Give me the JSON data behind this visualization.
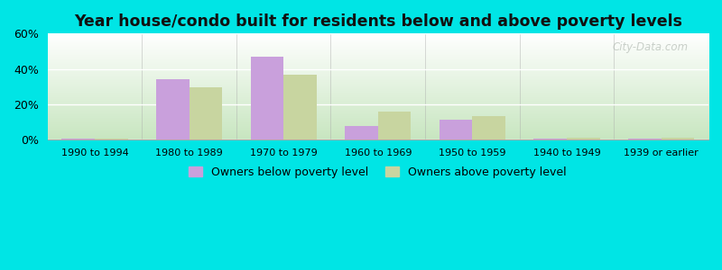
{
  "title": "Year house/condo built for residents below and above poverty levels",
  "categories": [
    "1990 to 1994",
    "1980 to 1989",
    "1970 to 1979",
    "1960 to 1969",
    "1950 to 1959",
    "1940 to 1949",
    "1939 or earlier"
  ],
  "below_poverty": [
    0.5,
    34.0,
    47.0,
    7.5,
    11.0,
    0.5,
    0.5
  ],
  "above_poverty": [
    0.5,
    29.5,
    36.5,
    16.0,
    13.5,
    0.8,
    0.8
  ],
  "below_color": "#c9a0dc",
  "above_color": "#c8d5a0",
  "ylim": [
    0,
    60
  ],
  "yticks": [
    0,
    20,
    40,
    60
  ],
  "legend_below": "Owners below poverty level",
  "legend_above": "Owners above poverty level",
  "bar_width": 0.35,
  "outer_bg": "#00e5e5",
  "plot_bg_top": "#ffffff",
  "plot_bg_bottom": "#c8e6c0",
  "grid_color": "#ffffff",
  "watermark": "City-Data.com"
}
